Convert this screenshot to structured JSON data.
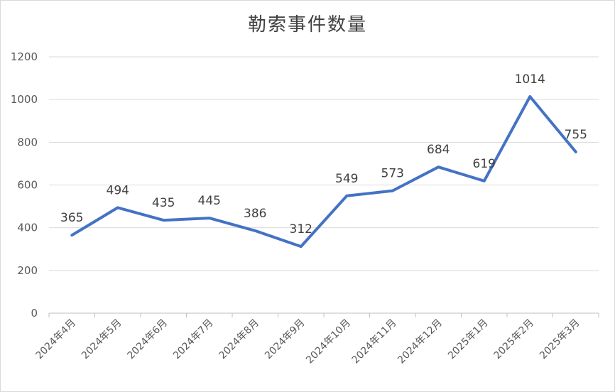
{
  "chart_data": {
    "type": "line",
    "title": "勒索事件数量",
    "xlabel": "",
    "ylabel": "",
    "categories": [
      "2024年4月",
      "2024年5月",
      "2024年6月",
      "2024年7月",
      "2024年8月",
      "2024年9月",
      "2024年10月",
      "2024年11月",
      "2024年12月",
      "2025年1月",
      "2025年2月",
      "2025年3月"
    ],
    "series": [
      {
        "values": [
          365,
          494,
          435,
          445,
          386,
          312,
          549,
          573,
          684,
          619,
          1014,
          755
        ],
        "color": "#4472c4"
      }
    ],
    "ylim": [
      0,
      1200
    ],
    "yticks": [
      "0",
      "200",
      "400",
      "600",
      "800",
      "1000",
      "1200"
    ],
    "grid": true,
    "legend": "none",
    "data_labels": true
  }
}
